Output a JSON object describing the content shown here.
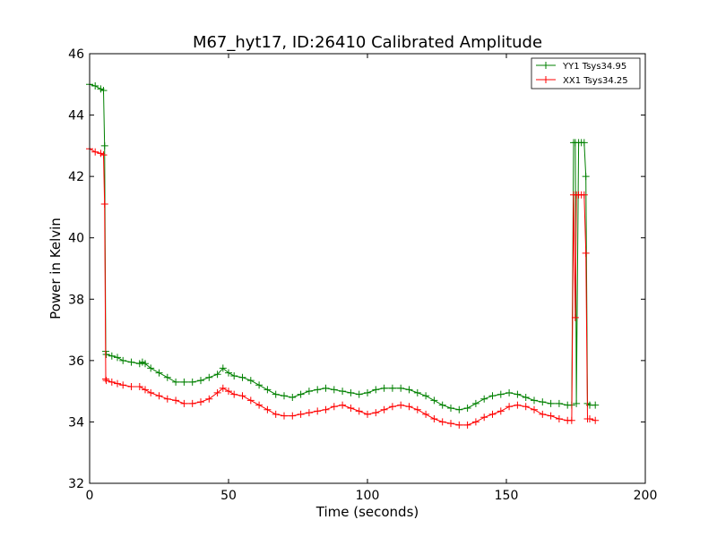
{
  "chart_data": {
    "type": "line",
    "title": "M67_hyt17, ID:26410 Calibrated Amplitude",
    "xlabel": "Time (seconds)",
    "ylabel": "Power in Kelvin",
    "xlim": [
      0,
      200
    ],
    "ylim": [
      32,
      46
    ],
    "xticks": [
      0,
      50,
      100,
      150,
      200
    ],
    "yticks": [
      32,
      34,
      36,
      38,
      40,
      42,
      44,
      46
    ],
    "grid": false,
    "legend_position": "top-right",
    "series": [
      {
        "name": "YY1 Tsys34.95",
        "color": "#008000",
        "marker": "+",
        "x": [
          0,
          2,
          4,
          5,
          5.4,
          5.8,
          6,
          8,
          10,
          12,
          15,
          18,
          19,
          20,
          22,
          25,
          28,
          31,
          34,
          37,
          40,
          43,
          46,
          48,
          50,
          52,
          55,
          58,
          61,
          64,
          67,
          70,
          73,
          76,
          79,
          82,
          85,
          88,
          91,
          94,
          97,
          100,
          103,
          106,
          109,
          112,
          115,
          118,
          121,
          124,
          127,
          130,
          133,
          136,
          139,
          142,
          145,
          148,
          151,
          154,
          157,
          160,
          163,
          166,
          169,
          172,
          173.5,
          174.2,
          174.8,
          175.2,
          176,
          177,
          178,
          178.6,
          179.2,
          180,
          182
        ],
        "y": [
          45.0,
          44.95,
          44.85,
          44.8,
          43.0,
          36.3,
          36.2,
          36.15,
          36.1,
          36.0,
          35.95,
          35.9,
          35.95,
          35.9,
          35.75,
          35.6,
          35.45,
          35.3,
          35.3,
          35.3,
          35.35,
          35.45,
          35.55,
          35.75,
          35.6,
          35.5,
          35.45,
          35.35,
          35.2,
          35.05,
          34.9,
          34.85,
          34.8,
          34.9,
          35.0,
          35.05,
          35.1,
          35.05,
          35.0,
          34.95,
          34.9,
          34.95,
          35.05,
          35.1,
          35.1,
          35.1,
          35.05,
          34.95,
          34.85,
          34.7,
          34.55,
          34.45,
          34.4,
          34.45,
          34.6,
          34.75,
          34.85,
          34.9,
          34.95,
          34.9,
          34.8,
          34.7,
          34.65,
          34.6,
          34.6,
          34.55,
          34.55,
          43.1,
          43.1,
          34.6,
          43.1,
          43.1,
          43.1,
          42.0,
          34.6,
          34.55,
          34.55
        ]
      },
      {
        "name": "XX1 Tsys34.25",
        "color": "#ff0000",
        "marker": "+",
        "x": [
          0,
          2,
          4,
          5,
          5.4,
          5.8,
          6,
          8,
          10,
          12,
          15,
          18,
          20,
          22,
          25,
          28,
          31,
          34,
          37,
          40,
          43,
          46,
          48,
          50,
          52,
          55,
          58,
          61,
          64,
          67,
          70,
          73,
          76,
          79,
          82,
          85,
          88,
          91,
          94,
          97,
          100,
          103,
          106,
          109,
          112,
          115,
          118,
          121,
          124,
          127,
          130,
          133,
          136,
          139,
          142,
          145,
          148,
          151,
          154,
          157,
          160,
          163,
          166,
          169,
          172,
          173.5,
          174.2,
          174.8,
          175.2,
          176,
          177,
          178,
          178.6,
          179.2,
          180,
          182
        ],
        "y": [
          42.9,
          42.8,
          42.75,
          42.7,
          41.1,
          35.4,
          35.35,
          35.3,
          35.25,
          35.2,
          35.15,
          35.15,
          35.05,
          34.95,
          34.85,
          34.75,
          34.7,
          34.6,
          34.6,
          34.65,
          34.75,
          34.95,
          35.1,
          35.0,
          34.9,
          34.85,
          34.7,
          34.55,
          34.4,
          34.25,
          34.2,
          34.2,
          34.25,
          34.3,
          34.35,
          34.4,
          34.5,
          34.55,
          34.45,
          34.35,
          34.25,
          34.3,
          34.4,
          34.5,
          34.55,
          34.5,
          34.4,
          34.25,
          34.1,
          34.0,
          33.95,
          33.9,
          33.9,
          34.0,
          34.15,
          34.25,
          34.35,
          34.5,
          34.55,
          34.5,
          34.4,
          34.25,
          34.2,
          34.1,
          34.05,
          34.05,
          41.4,
          37.4,
          41.4,
          41.4,
          41.4,
          41.4,
          39.5,
          34.1,
          34.1,
          34.05
        ]
      }
    ]
  }
}
